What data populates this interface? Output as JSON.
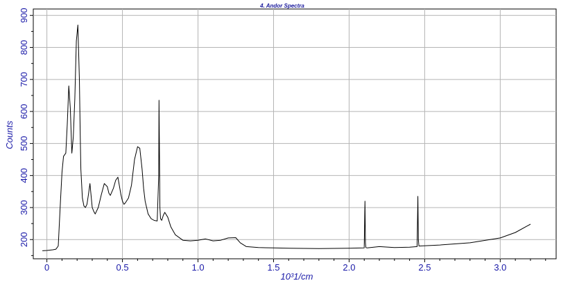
{
  "colors": {
    "text": "#1a1aa8",
    "title": "#1a1a9c",
    "grid": "#b4b4b4",
    "axis": "#000000",
    "trace": "#000000",
    "background": "#ffffff"
  },
  "chart_data": {
    "type": "line",
    "title": "4. Andor Spectra",
    "xlabel": "10^3 1/cm",
    "xlabel_display": "10³1/cm",
    "ylabel": "Counts",
    "xlim": [
      -0.09,
      3.37
    ],
    "ylim": [
      140,
      920
    ],
    "x_ticks": [
      0,
      0.5,
      1.0,
      1.5,
      2.0,
      2.5,
      3.0
    ],
    "x_tick_labels": [
      "0",
      "0.5",
      "1.0",
      "1.5",
      "2.0",
      "2.5",
      "3.0"
    ],
    "y_ticks": [
      200,
      300,
      400,
      500,
      600,
      700,
      800,
      900
    ],
    "y_tick_labels": [
      "200",
      "300",
      "400",
      "500",
      "600",
      "700",
      "800",
      "900"
    ],
    "grid": true,
    "legend": "none",
    "series": [
      {
        "x": [
          -0.03,
          0.0,
          0.04,
          0.06,
          0.075,
          0.09,
          0.1,
          0.11,
          0.125,
          0.135,
          0.145,
          0.155,
          0.165,
          0.175,
          0.185,
          0.195,
          0.205,
          0.215,
          0.22,
          0.225,
          0.235,
          0.245,
          0.255,
          0.265,
          0.275,
          0.285,
          0.29,
          0.3,
          0.31,
          0.32,
          0.34,
          0.36,
          0.38,
          0.4,
          0.41,
          0.42,
          0.44,
          0.455,
          0.47,
          0.49,
          0.5,
          0.51,
          0.52,
          0.54,
          0.56,
          0.58,
          0.6,
          0.615,
          0.63,
          0.64,
          0.65,
          0.66,
          0.67,
          0.69,
          0.71,
          0.73,
          0.74,
          0.742,
          0.745,
          0.748,
          0.752,
          0.76,
          0.77,
          0.78,
          0.8,
          0.82,
          0.85,
          0.9,
          0.95,
          1.0,
          1.05,
          1.1,
          1.15,
          1.2,
          1.25,
          1.28,
          1.32,
          1.4,
          1.5,
          1.6,
          1.8,
          2.0,
          2.1,
          2.105,
          2.108,
          2.111,
          2.12,
          2.2,
          2.3,
          2.4,
          2.45,
          2.455,
          2.458,
          2.462,
          2.47,
          2.6,
          2.8,
          3.0,
          3.1,
          3.2
        ],
        "y": [
          165,
          166,
          168,
          170,
          180,
          320,
          410,
          460,
          470,
          560,
          680,
          610,
          470,
          520,
          640,
          820,
          870,
          700,
          540,
          420,
          330,
          305,
          300,
          310,
          340,
          375,
          350,
          300,
          288,
          280,
          300,
          340,
          375,
          365,
          345,
          338,
          360,
          385,
          395,
          340,
          320,
          310,
          315,
          330,
          370,
          450,
          490,
          485,
          420,
          360,
          320,
          300,
          280,
          265,
          260,
          258,
          400,
          635,
          460,
          300,
          265,
          260,
          275,
          285,
          270,
          240,
          215,
          198,
          196,
          198,
          202,
          196,
          198,
          205,
          206,
          190,
          178,
          175,
          174,
          173,
          172,
          173,
          174,
          320,
          190,
          175,
          174,
          178,
          175,
          176,
          178,
          335,
          200,
          180,
          180,
          183,
          190,
          205,
          222,
          248
        ]
      }
    ]
  }
}
